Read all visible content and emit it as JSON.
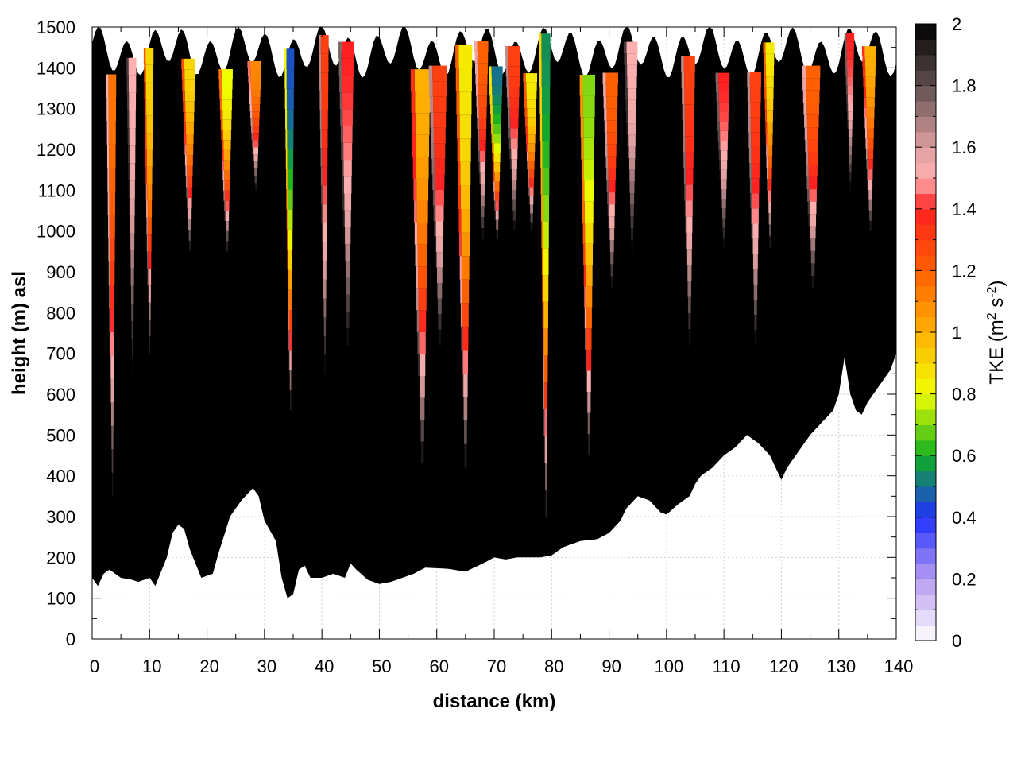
{
  "chart_data": {
    "type": "heatmap",
    "title": "",
    "xlabel": "distance (km)",
    "ylabel": "height (m) asl",
    "xlim": [
      0,
      140
    ],
    "ylim": [
      0,
      1500
    ],
    "x_ticks": [
      "0",
      "10",
      "20",
      "30",
      "40",
      "50",
      "60",
      "70",
      "80",
      "90",
      "100",
      "110",
      "120",
      "130",
      "140"
    ],
    "y_ticks": [
      "0",
      "100",
      "200",
      "300",
      "400",
      "500",
      "600",
      "700",
      "800",
      "900",
      "1000",
      "1100",
      "1200",
      "1300",
      "1400",
      "1500"
    ],
    "grid": true,
    "colorbar": {
      "label_main": "TKE (m",
      "label_sup1": "2",
      "label_mid": " s",
      "label_sup2": "-2",
      "label_end": ")",
      "range": [
        0,
        2
      ],
      "ticks": [
        "0",
        "0.2",
        "0.4",
        "0.6",
        "0.8",
        "1",
        "1.2",
        "1.4",
        "1.6",
        "1.8",
        "2"
      ],
      "stops": [
        {
          "value": 0.0,
          "color": "#ffffff"
        },
        {
          "value": 0.2,
          "color": "#b89cf0"
        },
        {
          "value": 0.4,
          "color": "#2030ff"
        },
        {
          "value": 0.6,
          "color": "#10b020"
        },
        {
          "value": 0.8,
          "color": "#f0ff00"
        },
        {
          "value": 1.0,
          "color": "#ffb000"
        },
        {
          "value": 1.2,
          "color": "#ff6000"
        },
        {
          "value": 1.4,
          "color": "#ff2020"
        },
        {
          "value": 1.5,
          "color": "#ffb0b0"
        },
        {
          "value": 1.6,
          "color": "#e0a0a0"
        },
        {
          "value": 1.8,
          "color": "#605050"
        },
        {
          "value": 2.0,
          "color": "#000000"
        }
      ]
    },
    "terrain_height_m": [
      [
        0,
        150
      ],
      [
        1,
        130
      ],
      [
        2,
        160
      ],
      [
        3,
        170
      ],
      [
        5,
        150
      ],
      [
        7,
        145
      ],
      [
        8,
        140
      ],
      [
        10,
        150
      ],
      [
        11,
        130
      ],
      [
        13,
        200
      ],
      [
        14,
        260
      ],
      [
        15,
        280
      ],
      [
        16,
        270
      ],
      [
        17,
        220
      ],
      [
        19,
        150
      ],
      [
        21,
        160
      ],
      [
        22,
        210
      ],
      [
        24,
        300
      ],
      [
        26,
        340
      ],
      [
        28,
        370
      ],
      [
        29,
        350
      ],
      [
        30,
        290
      ],
      [
        32,
        240
      ],
      [
        33,
        150
      ],
      [
        34,
        100
      ],
      [
        35,
        110
      ],
      [
        36,
        170
      ],
      [
        37,
        180
      ],
      [
        38,
        150
      ],
      [
        40,
        150
      ],
      [
        42,
        160
      ],
      [
        44,
        150
      ],
      [
        45,
        185
      ],
      [
        46,
        170
      ],
      [
        48,
        145
      ],
      [
        50,
        135
      ],
      [
        52,
        140
      ],
      [
        54,
        150
      ],
      [
        56,
        160
      ],
      [
        58,
        175
      ],
      [
        62,
        172
      ],
      [
        65,
        165
      ],
      [
        68,
        185
      ],
      [
        70,
        200
      ],
      [
        72,
        195
      ],
      [
        74,
        200
      ],
      [
        78,
        200
      ],
      [
        80,
        205
      ],
      [
        82,
        225
      ],
      [
        85,
        240
      ],
      [
        88,
        245
      ],
      [
        90,
        260
      ],
      [
        92,
        290
      ],
      [
        93,
        320
      ],
      [
        95,
        350
      ],
      [
        97,
        340
      ],
      [
        99,
        310
      ],
      [
        100,
        305
      ],
      [
        102,
        330
      ],
      [
        104,
        350
      ],
      [
        105,
        380
      ],
      [
        106,
        400
      ],
      [
        108,
        420
      ],
      [
        110,
        450
      ],
      [
        112,
        470
      ],
      [
        114,
        500
      ],
      [
        116,
        480
      ],
      [
        118,
        450
      ],
      [
        120,
        390
      ],
      [
        121,
        420
      ],
      [
        123,
        460
      ],
      [
        125,
        500
      ],
      [
        127,
        530
      ],
      [
        129,
        560
      ],
      [
        130,
        600
      ],
      [
        131,
        690
      ],
      [
        132,
        600
      ],
      [
        133,
        560
      ],
      [
        134,
        550
      ],
      [
        135,
        580
      ],
      [
        137,
        620
      ],
      [
        139,
        660
      ],
      [
        140,
        700
      ]
    ],
    "turbulent_plumes": [
      {
        "x_km": 3.5,
        "width_km": 1.4,
        "bottom_m": 350,
        "peak_tke": 1.15
      },
      {
        "x_km": 7.0,
        "width_km": 1.4,
        "bottom_m": 650,
        "peak_tke": 1.5
      },
      {
        "x_km": 10.0,
        "width_km": 1.4,
        "bottom_m": 700,
        "peak_tke": 0.9
      },
      {
        "x_km": 17.0,
        "width_km": 2.0,
        "bottom_m": 950,
        "peak_tke": 0.9
      },
      {
        "x_km": 23.5,
        "width_km": 2.0,
        "bottom_m": 950,
        "peak_tke": 0.8
      },
      {
        "x_km": 28.5,
        "width_km": 2.0,
        "bottom_m": 1100,
        "peak_tke": 1.1
      },
      {
        "x_km": 34.5,
        "width_km": 1.4,
        "bottom_m": 560,
        "peak_tke": 0.45
      },
      {
        "x_km": 40.5,
        "width_km": 1.4,
        "bottom_m": 650,
        "peak_tke": 1.3
      },
      {
        "x_km": 44.5,
        "width_km": 2.2,
        "bottom_m": 720,
        "peak_tke": 1.4
      },
      {
        "x_km": 57.5,
        "width_km": 2.8,
        "bottom_m": 430,
        "peak_tke": 1.0
      },
      {
        "x_km": 60.5,
        "width_km": 2.6,
        "bottom_m": 720,
        "peak_tke": 1.3
      },
      {
        "x_km": 65.0,
        "width_km": 2.4,
        "bottom_m": 420,
        "peak_tke": 0.85
      },
      {
        "x_km": 68.0,
        "width_km": 2.0,
        "bottom_m": 980,
        "peak_tke": 1.2
      },
      {
        "x_km": 70.5,
        "width_km": 2.0,
        "bottom_m": 980,
        "peak_tke": 0.5
      },
      {
        "x_km": 73.5,
        "width_km": 2.2,
        "bottom_m": 1000,
        "peak_tke": 1.3
      },
      {
        "x_km": 76.5,
        "width_km": 2.0,
        "bottom_m": 1000,
        "peak_tke": 0.85
      },
      {
        "x_km": 79.0,
        "width_km": 1.6,
        "bottom_m": 300,
        "peak_tke": 0.55
      },
      {
        "x_km": 86.5,
        "width_km": 2.2,
        "bottom_m": 450,
        "peak_tke": 0.7
      },
      {
        "x_km": 90.5,
        "width_km": 2.2,
        "bottom_m": 860,
        "peak_tke": 1.2
      },
      {
        "x_km": 94.0,
        "width_km": 2.0,
        "bottom_m": 950,
        "peak_tke": 1.5
      },
      {
        "x_km": 104.0,
        "width_km": 2.0,
        "bottom_m": 720,
        "peak_tke": 1.3
      },
      {
        "x_km": 110.0,
        "width_km": 2.0,
        "bottom_m": 960,
        "peak_tke": 1.4
      },
      {
        "x_km": 115.5,
        "width_km": 2.0,
        "bottom_m": 720,
        "peak_tke": 1.3
      },
      {
        "x_km": 118.0,
        "width_km": 1.6,
        "bottom_m": 960,
        "peak_tke": 0.85
      },
      {
        "x_km": 125.5,
        "width_km": 2.6,
        "bottom_m": 860,
        "peak_tke": 1.2
      },
      {
        "x_km": 132.0,
        "width_km": 1.4,
        "bottom_m": 1100,
        "peak_tke": 1.4
      },
      {
        "x_km": 135.5,
        "width_km": 2.0,
        "bottom_m": 1000,
        "peak_tke": 1.0
      }
    ]
  }
}
